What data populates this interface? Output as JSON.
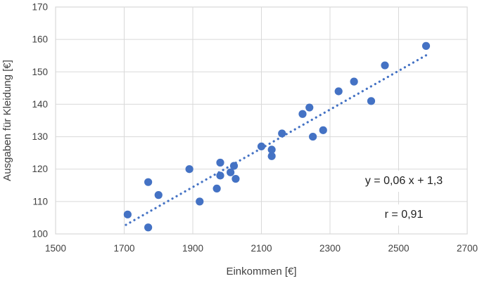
{
  "chart_data": {
    "type": "scatter",
    "title": "",
    "xlabel": "Einkommen [€]",
    "ylabel": "Ausgaben für Kleidung [€]",
    "xlim": [
      1500,
      2700
    ],
    "ylim": [
      100,
      170
    ],
    "xticks": [
      1500,
      1700,
      1900,
      2100,
      2300,
      2500,
      2700
    ],
    "yticks": [
      100,
      110,
      120,
      130,
      140,
      150,
      160,
      170
    ],
    "grid": true,
    "legend": "none",
    "points": [
      {
        "x": 1710,
        "y": 106
      },
      {
        "x": 1770,
        "y": 102
      },
      {
        "x": 1770,
        "y": 116
      },
      {
        "x": 1800,
        "y": 112
      },
      {
        "x": 1890,
        "y": 120
      },
      {
        "x": 1920,
        "y": 110
      },
      {
        "x": 1970,
        "y": 114
      },
      {
        "x": 1980,
        "y": 118
      },
      {
        "x": 1980,
        "y": 122
      },
      {
        "x": 2010,
        "y": 119
      },
      {
        "x": 2020,
        "y": 121
      },
      {
        "x": 2025,
        "y": 117
      },
      {
        "x": 2100,
        "y": 127
      },
      {
        "x": 2130,
        "y": 124
      },
      {
        "x": 2130,
        "y": 126
      },
      {
        "x": 2160,
        "y": 131
      },
      {
        "x": 2220,
        "y": 137
      },
      {
        "x": 2240,
        "y": 139
      },
      {
        "x": 2250,
        "y": 130
      },
      {
        "x": 2280,
        "y": 132
      },
      {
        "x": 2325,
        "y": 144
      },
      {
        "x": 2370,
        "y": 147
      },
      {
        "x": 2420,
        "y": 141
      },
      {
        "x": 2460,
        "y": 152
      },
      {
        "x": 2580,
        "y": 158
      }
    ],
    "trendline": {
      "style": "dotted",
      "slope": 0.06,
      "intercept": 1.3,
      "x1": 1705,
      "y1": 102.8,
      "x2": 2585,
      "y2": 155.4
    },
    "annotations": [
      {
        "id": "equation",
        "text": "y = 0,06 x + 1,3"
      },
      {
        "id": "correlation",
        "text": "r = 0,91"
      }
    ],
    "colors": {
      "marker": "#4472C4",
      "trendline": "#4472C4",
      "gridline": "#D9D9D9",
      "axis_text": "#404040",
      "annotation_text": "#1f1f1f",
      "background": "#FFFFFF"
    }
  }
}
